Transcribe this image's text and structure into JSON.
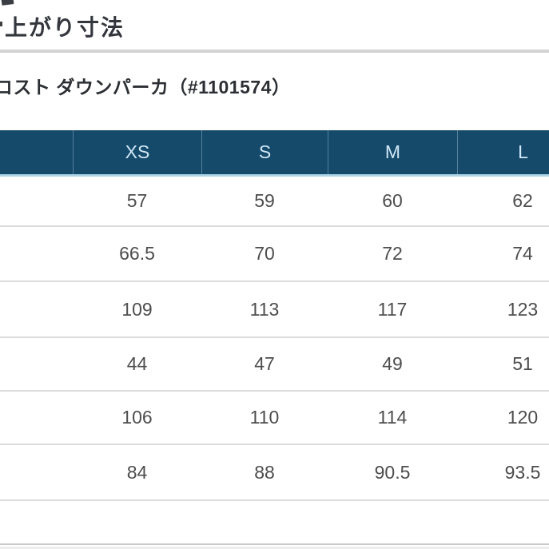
{
  "header": {
    "section_title": "上がり寸法",
    "product_title": "コスト ダウンパーカ（#1101574）"
  },
  "size_table": {
    "column_headers": {
      "row_label": "",
      "sizes": [
        "XS",
        "S",
        "M",
        "L"
      ]
    },
    "rows": [
      {
        "label": "",
        "values": [
          "57",
          "59",
          "60",
          "62"
        ]
      },
      {
        "label": "",
        "values": [
          "66.5",
          "70",
          "72",
          "74"
        ]
      },
      {
        "label": "",
        "values": [
          "109",
          "113",
          "117",
          "123"
        ]
      },
      {
        "label": "",
        "values": [
          "44",
          "47",
          "49",
          "51"
        ]
      },
      {
        "label": "",
        "values": [
          "106",
          "110",
          "114",
          "120"
        ]
      },
      {
        "label": "",
        "values": [
          "84",
          "88",
          "90.5",
          "93.5"
        ]
      },
      {
        "label": "",
        "values": [
          "",
          "",
          "",
          ""
        ]
      }
    ]
  },
  "colors": {
    "table_header_bg": "#154a6b",
    "table_header_text": "#cfe8f7",
    "header_accent_border": "#aed4e6",
    "body_text": "#4d4d4d",
    "row_border": "#dcdcdc",
    "divider": "#d4d4d4"
  }
}
